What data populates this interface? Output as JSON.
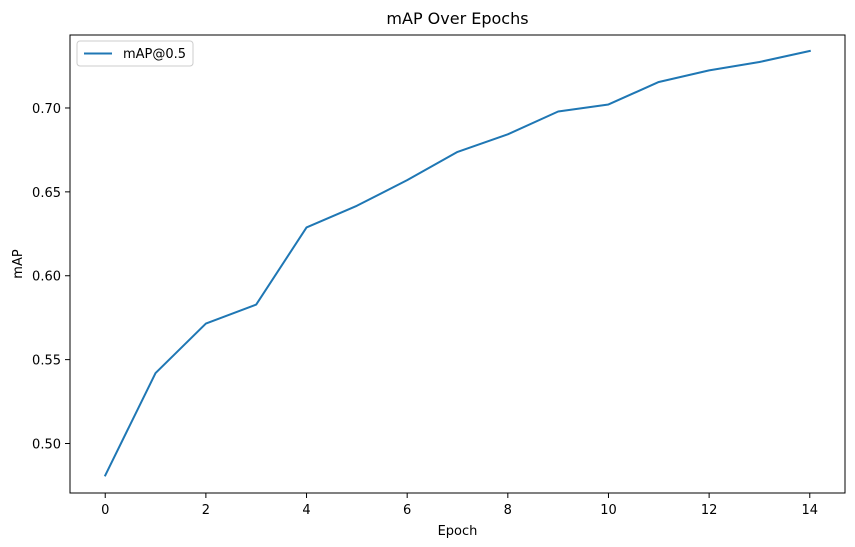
{
  "chart_data": {
    "type": "line",
    "title": "mAP Over Epochs",
    "xlabel": "Epoch",
    "ylabel": "mAP",
    "x": [
      0,
      1,
      2,
      3,
      4,
      5,
      6,
      7,
      8,
      9,
      10,
      11,
      12,
      13,
      14
    ],
    "series": [
      {
        "name": "mAP@0.5",
        "color": "#1f77b4",
        "values": [
          0.481,
          0.542,
          0.5715,
          0.5828,
          0.6288,
          0.6417,
          0.657,
          0.6738,
          0.6843,
          0.6979,
          0.7021,
          0.7155,
          0.7224,
          0.7274,
          0.734
        ]
      }
    ],
    "xlim": [
      -0.7,
      14.7
    ],
    "ylim": [
      0.4705,
      0.7435
    ],
    "xticks": [
      "0",
      "2",
      "4",
      "6",
      "8",
      "10",
      "12",
      "14"
    ],
    "yticks": [
      "0.50",
      "0.55",
      "0.60",
      "0.65",
      "0.70"
    ],
    "grid": false,
    "legend_position": "upper-left"
  }
}
